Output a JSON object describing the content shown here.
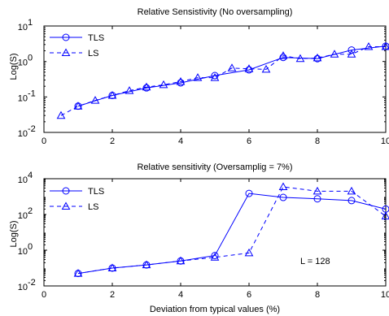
{
  "chart_data": [
    {
      "type": "line",
      "title": "Relative Sensistivity (No oversampling)",
      "xlabel": "",
      "ylabel": "Log(S)",
      "xlim": [
        0,
        10
      ],
      "ylim": [
        0.01,
        10
      ],
      "yscale": "log",
      "xticks": [
        "0",
        "2",
        "4",
        "6",
        "8",
        "10"
      ],
      "yticks": [
        {
          "value": 0.01,
          "base": "10",
          "exp": "-2"
        },
        {
          "value": 0.1,
          "base": "10",
          "exp": "-1"
        },
        {
          "value": 1,
          "base": "10",
          "exp": "0"
        },
        {
          "value": 10,
          "base": "10",
          "exp": "1"
        }
      ],
      "legend": "top-left",
      "color": "#0000ff",
      "series": [
        {
          "name": "TLS",
          "style": "solid",
          "marker": "circle",
          "x": [
            1,
            2,
            3,
            4,
            5,
            6,
            7,
            8,
            9,
            10
          ],
          "y": [
            0.055,
            0.11,
            0.18,
            0.25,
            0.4,
            0.58,
            1.3,
            1.2,
            2.1,
            2.7
          ]
        },
        {
          "name": "LS",
          "style": "dashed",
          "marker": "triangle",
          "x": [
            0.5,
            1,
            1.5,
            2,
            2.5,
            3,
            3.5,
            4,
            4.5,
            5,
            5.5,
            6,
            6.5,
            7,
            7.5,
            8,
            8.5,
            9,
            9.5,
            10
          ],
          "y": [
            0.03,
            0.055,
            0.08,
            0.11,
            0.15,
            0.19,
            0.22,
            0.27,
            0.35,
            0.35,
            0.65,
            0.62,
            0.6,
            1.45,
            1.2,
            1.25,
            1.6,
            1.6,
            2.6,
            2.6
          ]
        }
      ]
    },
    {
      "type": "line",
      "title": "Relative sensitivity (Oversamplig = 7%)",
      "xlabel": "Deviation from typical values (%)",
      "ylabel": "Log(S)",
      "xlim": [
        0,
        10
      ],
      "ylim": [
        0.01,
        10000
      ],
      "yscale": "log",
      "xticks": [
        "0",
        "2",
        "4",
        "6",
        "8",
        "10"
      ],
      "yticks": [
        {
          "value": 0.01,
          "base": "10",
          "exp": "-2"
        },
        {
          "value": 1,
          "base": "10",
          "exp": "0"
        },
        {
          "value": 100,
          "base": "10",
          "exp": "2"
        },
        {
          "value": 10000,
          "base": "10",
          "exp": "4"
        }
      ],
      "legend": "top-left",
      "annotation": "L = 128",
      "color": "#0000ff",
      "series": [
        {
          "name": "TLS",
          "style": "solid",
          "marker": "circle",
          "x": [
            1,
            2,
            3,
            4,
            5,
            6,
            7,
            8,
            9,
            10
          ],
          "y": [
            0.05,
            0.1,
            0.15,
            0.25,
            0.5,
            1500,
            900,
            750,
            600,
            200
          ]
        },
        {
          "name": "LS",
          "style": "dashed",
          "marker": "triangle",
          "x": [
            1,
            2,
            3,
            4,
            5,
            6,
            7,
            8,
            9,
            10
          ],
          "y": [
            0.05,
            0.1,
            0.15,
            0.25,
            0.4,
            0.7,
            3500,
            2000,
            2000,
            80
          ]
        }
      ]
    }
  ]
}
